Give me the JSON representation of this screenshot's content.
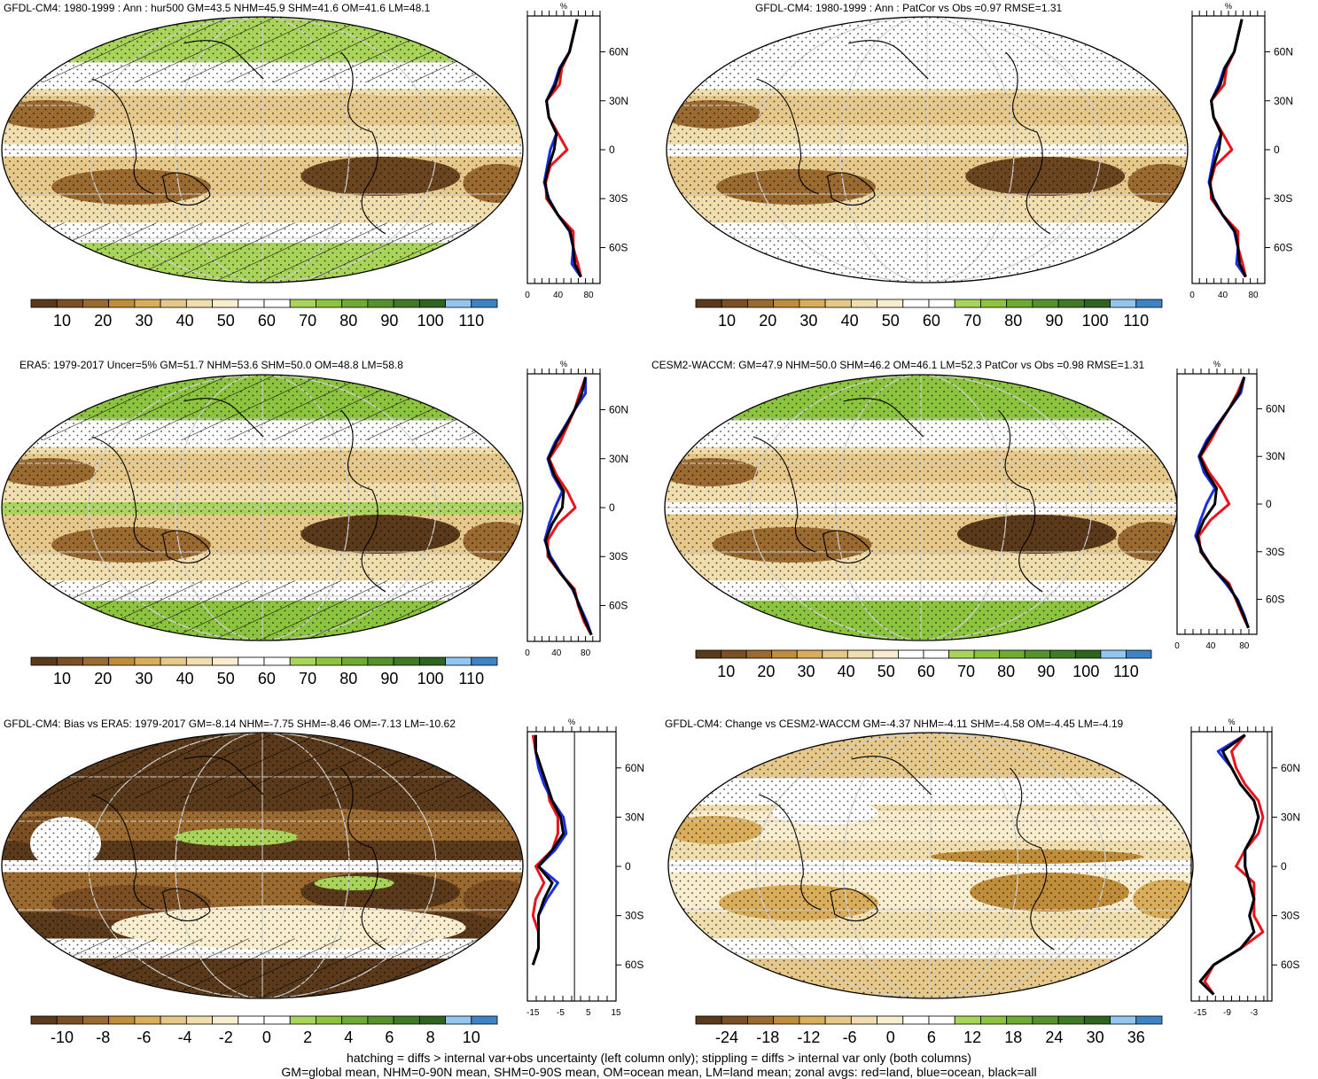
{
  "footer": {
    "line1": "hatching = diffs > internal var+obs uncertainty (left column only); stippling = diffs > internal var only (both columns)",
    "line2": "GM=global mean, NHM=0-90N mean, SHM=0-90S mean, OM=ocean mean, LM=land mean; zonal avgs: red=land, blue=ocean, black=all"
  },
  "palettes": {
    "abs": [
      "#5a3a1a",
      "#7b4f23",
      "#9a6a30",
      "#c08e3a",
      "#d9ad5a",
      "#e6c98a",
      "#f1deaf",
      "#f8eecf",
      "#ffffff",
      "#ffffff",
      "#a8d45a",
      "#8cc43f",
      "#6faa33",
      "#55922b",
      "#3f7a25",
      "#2c6420",
      "#90c6ef",
      "#3c84c6"
    ],
    "bias": [
      "#5a3a1a",
      "#7b4f23",
      "#9a6a30",
      "#c08e3a",
      "#d9ad5a",
      "#e6c98a",
      "#f1deaf",
      "#f8eecf",
      "#ffffff",
      "#ffffff",
      "#a8d45a",
      "#8cc43f",
      "#6faa33",
      "#55922b",
      "#3f7a25",
      "#2c6420",
      "#90c6ef",
      "#3c84c6"
    ]
  },
  "colors": {
    "land": "#e8141c",
    "ocean": "#1a2fe0",
    "all": "#000000"
  },
  "panels": [
    {
      "id": "p1",
      "title": "GFDL-CM4: 1980-1999 : Ann : hur500 GM=43.5 NHM=45.9 SHM=41.6 OM=41.6 LM=48.1",
      "hatch": true,
      "colorbar_labels": [
        "10",
        "20",
        "30",
        "40",
        "50",
        "60",
        "70",
        "80",
        "90",
        "100",
        "110"
      ],
      "zonal": {
        "unit": "%",
        "xlim": [
          0,
          95
        ],
        "xticks": [
          "0",
          "40",
          "80"
        ],
        "xtick_values": [
          0,
          40,
          80
        ],
        "ylim": [
          -82,
          82
        ],
        "yticks": [
          "60N",
          "30N",
          "0",
          "30S",
          "60S"
        ],
        "lat": [
          80,
          70,
          60,
          50,
          40,
          30,
          20,
          10,
          0,
          -10,
          -20,
          -30,
          -40,
          -50,
          -60,
          -70,
          -78
        ],
        "land": [
          65,
          60,
          55,
          45,
          42,
          25,
          28,
          40,
          52,
          30,
          24,
          25,
          40,
          60,
          60,
          66,
          70
        ],
        "ocean": [
          65,
          60,
          55,
          42,
          35,
          25,
          28,
          38,
          30,
          26,
          22,
          28,
          40,
          55,
          60,
          58,
          70
        ],
        "all": [
          65,
          60,
          55,
          43,
          37,
          25,
          28,
          38,
          35,
          28,
          23,
          27,
          40,
          56,
          60,
          62,
          70
        ]
      }
    },
    {
      "id": "p2",
      "title": "GFDL-CM4: 1980-1999 : Ann : PatCor vs Obs =0.97 RMSE=1.31",
      "hatch": false,
      "colorbar_labels": [
        "10",
        "20",
        "30",
        "40",
        "50",
        "60",
        "70",
        "80",
        "90",
        "100",
        "110"
      ],
      "zonal": {
        "unit": "%",
        "xlim": [
          0,
          95
        ],
        "xticks": [
          "0",
          "40",
          "80"
        ],
        "xtick_values": [
          0,
          40,
          80
        ],
        "ylim": [
          -82,
          82
        ],
        "yticks": [
          "60N",
          "30N",
          "0",
          "30S",
          "60S"
        ],
        "lat": [
          80,
          70,
          60,
          50,
          40,
          30,
          20,
          10,
          0,
          -10,
          -20,
          -30,
          -40,
          -50,
          -60,
          -70,
          -78
        ],
        "land": [
          65,
          60,
          55,
          45,
          42,
          25,
          28,
          40,
          52,
          30,
          24,
          25,
          40,
          60,
          60,
          66,
          70
        ],
        "ocean": [
          65,
          60,
          55,
          42,
          35,
          25,
          28,
          38,
          30,
          26,
          22,
          28,
          40,
          55,
          60,
          58,
          70
        ],
        "all": [
          65,
          60,
          55,
          43,
          37,
          25,
          28,
          38,
          35,
          28,
          23,
          27,
          40,
          56,
          60,
          62,
          70
        ]
      }
    },
    {
      "id": "p3",
      "title": "ERA5: 1979-2017 Uncer=5% GM=51.7 NHM=53.6 SHM=50.0 OM=48.8 LM=58.8",
      "hatch": true,
      "colorbar_labels": [
        "10",
        "20",
        "30",
        "40",
        "50",
        "60",
        "70",
        "80",
        "90",
        "100",
        "110"
      ],
      "zonal": {
        "unit": "%",
        "xlim": [
          0,
          100
        ],
        "xticks": [
          "0",
          "40",
          "80"
        ],
        "xtick_values": [
          0,
          40,
          80
        ],
        "ylim": [
          -82,
          82
        ],
        "yticks": [
          "60N",
          "30N",
          "0",
          "30S",
          "60S"
        ],
        "lat": [
          80,
          70,
          60,
          50,
          40,
          30,
          20,
          10,
          0,
          -10,
          -20,
          -30,
          -40,
          -50,
          -60,
          -70,
          -78
        ],
        "land": [
          80,
          72,
          65,
          55,
          45,
          30,
          40,
          55,
          66,
          42,
          28,
          28,
          45,
          65,
          70,
          78,
          88
        ],
        "ocean": [
          80,
          80,
          65,
          52,
          38,
          28,
          35,
          48,
          38,
          30,
          24,
          32,
          46,
          62,
          72,
          82,
          88
        ],
        "all": [
          80,
          75,
          65,
          53,
          40,
          29,
          37,
          50,
          48,
          34,
          25,
          30,
          45,
          63,
          71,
          80,
          88
        ]
      }
    },
    {
      "id": "p4",
      "title": "CESM2-WACCM: GM=47.9 NHM=50.0 SHM=46.2 OM=46.1 LM=52.3 PatCor vs Obs =0.98 RMSE=1.31",
      "hatch": false,
      "colorbar_labels": [
        "10",
        "20",
        "30",
        "40",
        "50",
        "60",
        "70",
        "80",
        "90",
        "100",
        "110"
      ],
      "zonal": {
        "unit": "%",
        "xlim": [
          0,
          95
        ],
        "xticks": [
          "0",
          "40",
          "80"
        ],
        "xtick_values": [
          0,
          40,
          80
        ],
        "ylim": [
          -82,
          82
        ],
        "yticks": [
          "60N",
          "30N",
          "0",
          "30S",
          "60S"
        ],
        "lat": [
          80,
          70,
          60,
          50,
          40,
          30,
          20,
          10,
          0,
          -10,
          -20,
          -30,
          -40,
          -50,
          -60,
          -70,
          -78
        ],
        "land": [
          80,
          72,
          62,
          50,
          40,
          28,
          38,
          52,
          62,
          40,
          26,
          28,
          42,
          62,
          70,
          78,
          85
        ],
        "ocean": [
          80,
          76,
          62,
          48,
          35,
          26,
          32,
          45,
          35,
          28,
          22,
          30,
          42,
          58,
          72,
          80,
          85
        ],
        "all": [
          80,
          74,
          62,
          49,
          37,
          27,
          35,
          47,
          45,
          32,
          24,
          29,
          42,
          60,
          71,
          79,
          85
        ]
      }
    },
    {
      "id": "p5",
      "title": "GFDL-CM4: Bias vs ERA5: 1979-2017 GM=-8.14 NHM=-7.75 SHM=-8.46 OM=-7.13 LM=-10.62",
      "hatch": true,
      "colorbar_labels": [
        "-10",
        "-8",
        "-6",
        "-4",
        "-2",
        "0",
        "2",
        "4",
        "6",
        "8",
        "10"
      ],
      "zonal": {
        "unit": "%",
        "xlim": [
          -17,
          15
        ],
        "xticks": [
          "-15",
          "-5",
          "5",
          "15"
        ],
        "xtick_values": [
          -15,
          -5,
          5,
          15
        ],
        "ylim": [
          -82,
          82
        ],
        "yticks": [
          "60N",
          "30N",
          "0",
          "30S",
          "60S"
        ],
        "lat": [
          80,
          70,
          60,
          50,
          40,
          30,
          20,
          10,
          0,
          -10,
          -20,
          -30,
          -40,
          -50,
          -60
        ],
        "land": [
          -15,
          -14,
          -12,
          -10,
          -9,
          -6,
          -6,
          -8,
          -14,
          -11,
          -14,
          -15,
          -13,
          -13,
          -15
        ],
        "ocean": [
          -14,
          -14,
          -13,
          -11,
          -8,
          -4,
          -3,
          -7,
          -13,
          -6,
          -10,
          -13,
          -13,
          -13,
          -15
        ],
        "all": [
          -14,
          -14,
          -12,
          -10,
          -8,
          -5,
          -4,
          -8,
          -13,
          -8,
          -11,
          -13,
          -13,
          -13,
          -15
        ]
      }
    },
    {
      "id": "p6",
      "title": "GFDL-CM4: Change vs CESM2-WACCM GM=-4.37 NHM=-4.11 SHM=-4.58 OM=-4.45 LM=-4.19",
      "hatch": false,
      "colorbar_labels": [
        "-24",
        "-18",
        "-12",
        "-6",
        "0",
        "6",
        "12",
        "18",
        "24",
        "30",
        "36"
      ],
      "zonal": {
        "unit": "%",
        "xlim": [
          -17,
          1
        ],
        "xticks": [
          "-15",
          "-9",
          "-3"
        ],
        "xtick_values": [
          -15,
          -9,
          -3
        ],
        "ylim": [
          -82,
          82
        ],
        "yticks": [
          "60N",
          "30N",
          "0",
          "30S",
          "60S"
        ],
        "lat": [
          80,
          70,
          60,
          50,
          40,
          30,
          20,
          10,
          0,
          -10,
          -20,
          -30,
          -40,
          -50,
          -60,
          -70,
          -78
        ],
        "land": [
          -5,
          -8,
          -7,
          -5,
          -2,
          -1,
          -2,
          -5,
          -7,
          -3,
          -3,
          -3,
          -1,
          -6,
          -12,
          -14,
          -12
        ],
        "ocean": [
          -5,
          -11,
          -8,
          -6,
          -3,
          -2,
          -3,
          -5,
          -5,
          -4,
          -3,
          -4,
          -3,
          -6,
          -12,
          -15,
          -12
        ],
        "all": [
          -5,
          -10,
          -8,
          -6,
          -3,
          -2,
          -3,
          -5,
          -5,
          -4,
          -3,
          -4,
          -3,
          -6,
          -12,
          -15,
          -12
        ]
      }
    }
  ]
}
